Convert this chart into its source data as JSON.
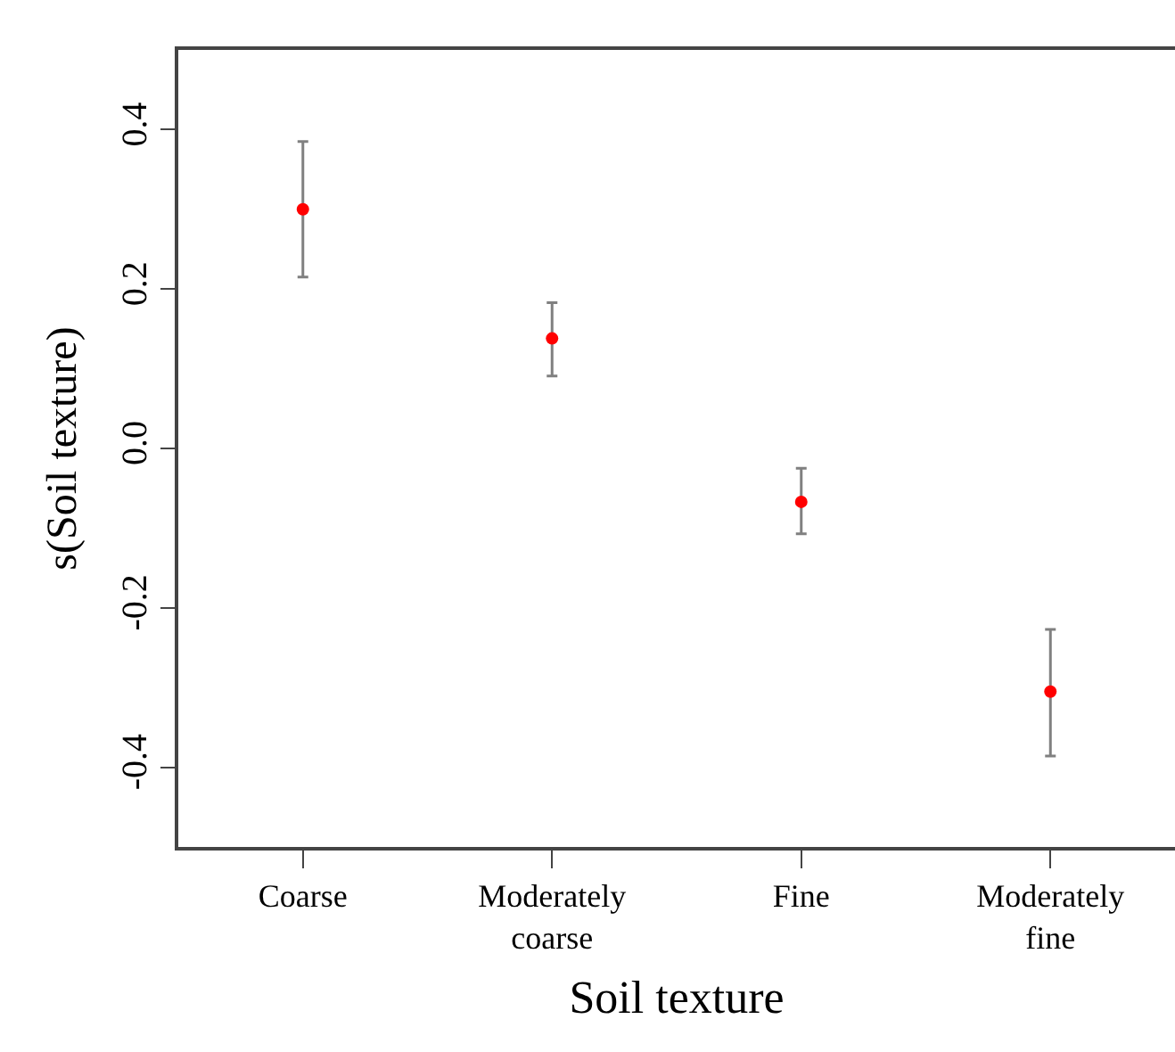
{
  "chart_data": {
    "type": "scatter",
    "xlabel": "Soil texture",
    "ylabel": "s(Soil texture)",
    "categories": [
      "Coarse",
      "Moderately\ncoarse",
      "Fine",
      "Moderately\nfine"
    ],
    "series": [
      {
        "color": "#ff0000",
        "values": [
          0.3,
          0.138,
          -0.067,
          -0.305
        ],
        "errors": [
          [
            0.215,
            0.385
          ],
          [
            0.091,
            0.183
          ],
          [
            -0.107,
            -0.025
          ],
          [
            -0.386,
            -0.227
          ]
        ]
      }
    ],
    "ylim": [
      -0.5,
      0.5
    ],
    "yticks": [
      {
        "value": 0.4,
        "label": "0.4"
      },
      {
        "value": 0.2,
        "label": "0.2"
      },
      {
        "value": 0,
        "label": "0.0"
      },
      {
        "value": -0.2,
        "label": "-0.2"
      },
      {
        "value": -0.4,
        "label": "-0.4"
      }
    ],
    "legend": false,
    "marker": "circle"
  }
}
